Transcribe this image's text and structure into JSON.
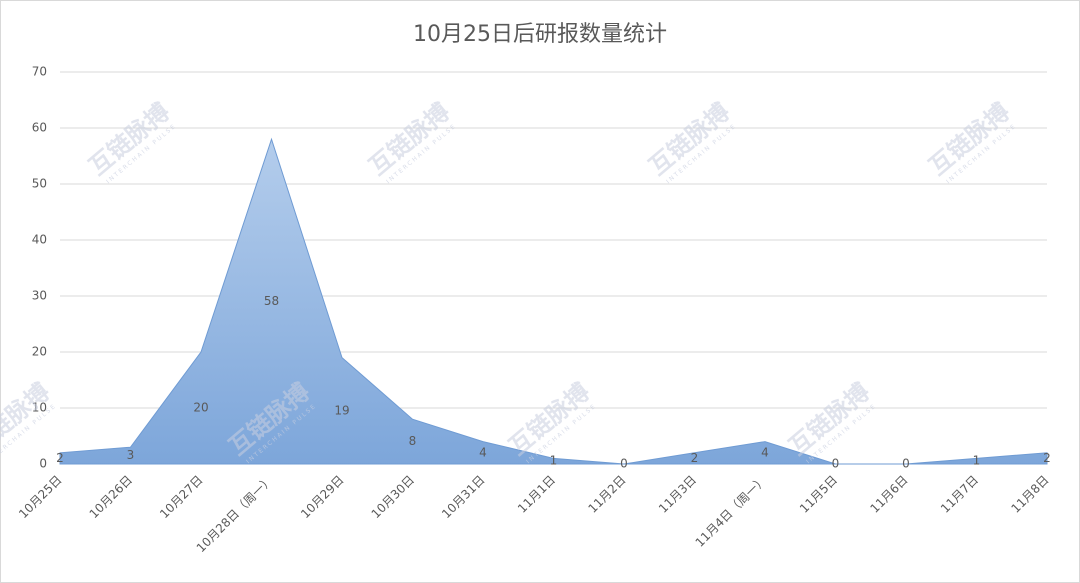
{
  "chart_data": {
    "type": "area",
    "title": "10月25日后研报数量统计",
    "categories": [
      "10月25日",
      "10月26日",
      "10月27日",
      "10月28日（周一）",
      "10月29日",
      "10月30日",
      "10月31日",
      "11月1日",
      "11月2日",
      "11月3日",
      "11月4日（周一）",
      "11月5日",
      "11月6日",
      "11月7日",
      "11月8日"
    ],
    "values": [
      2,
      3,
      20,
      58,
      19,
      8,
      4,
      1,
      0,
      2,
      4,
      0,
      0,
      1,
      2
    ],
    "color": "#8fb3e0",
    "ylim": [
      0,
      70
    ],
    "yticks": [
      0,
      10,
      20,
      30,
      40,
      50,
      60,
      70
    ],
    "grid": true,
    "watermark": "互链脉搏",
    "watermark_sub": "INTERCHAIN PULSE"
  }
}
